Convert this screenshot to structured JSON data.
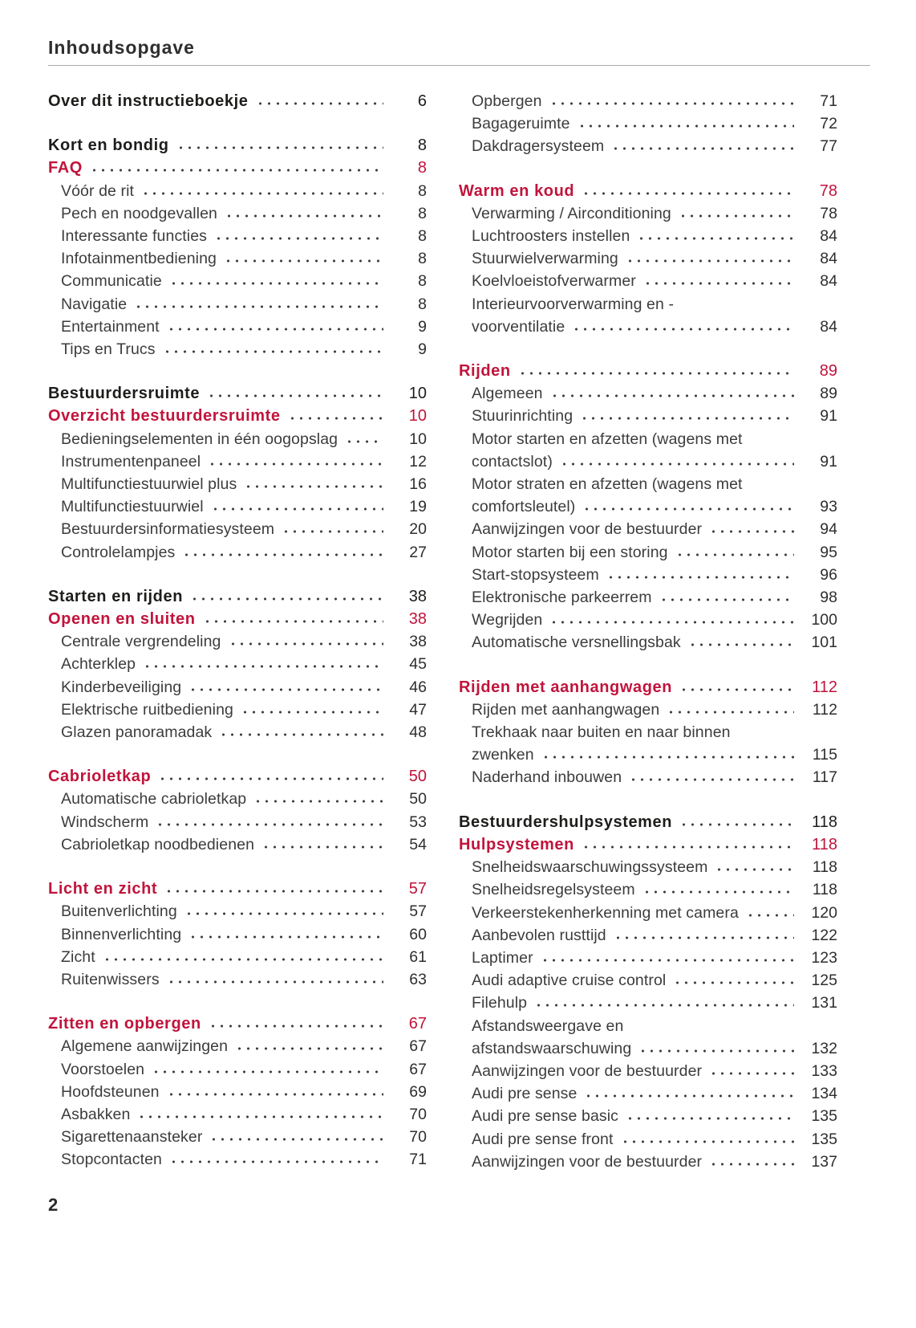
{
  "page": {
    "header_title": "Inhoudsopgave",
    "footer_page_number": "2",
    "accent_color": "#c1143c",
    "chapter_color": "#1d1d1b",
    "body_color": "#3c3c3c"
  },
  "toc": {
    "left_column": [
      {
        "type": "chapter",
        "label": "Over dit instructieboekje",
        "page": "6"
      },
      {
        "type": "chapter",
        "label": "Kort en bondig",
        "page": "8",
        "gap_before": true
      },
      {
        "type": "section",
        "label": "FAQ",
        "page": "8"
      },
      {
        "type": "sub",
        "label": "Vóór de rit",
        "page": "8"
      },
      {
        "type": "sub",
        "label": "Pech en noodgevallen",
        "page": "8"
      },
      {
        "type": "sub",
        "label": "Interessante functies",
        "page": "8"
      },
      {
        "type": "sub",
        "label": "Infotainmentbediening",
        "page": "8"
      },
      {
        "type": "sub",
        "label": "Communicatie",
        "page": "8"
      },
      {
        "type": "sub",
        "label": "Navigatie",
        "page": "8"
      },
      {
        "type": "sub",
        "label": "Entertainment",
        "page": "9"
      },
      {
        "type": "sub",
        "label": "Tips en Trucs",
        "page": "9"
      },
      {
        "type": "chapter",
        "label": "Bestuurdersruimte",
        "page": "10",
        "gap_before": true
      },
      {
        "type": "section",
        "label": "Overzicht bestuurdersruimte",
        "page": "10"
      },
      {
        "type": "sub",
        "label": "Bedieningselementen in één oogopslag",
        "page": "10"
      },
      {
        "type": "sub",
        "label": "Instrumentenpaneel",
        "page": "12"
      },
      {
        "type": "sub",
        "label": "Multifunctiestuurwiel plus",
        "page": "16"
      },
      {
        "type": "sub",
        "label": "Multifunctiestuurwiel",
        "page": "19"
      },
      {
        "type": "sub",
        "label": "Bestuurdersinformatiesysteem",
        "page": "20"
      },
      {
        "type": "sub",
        "label": "Controlelampjes",
        "page": "27"
      },
      {
        "type": "chapter",
        "label": "Starten en rijden",
        "page": "38",
        "gap_before": true
      },
      {
        "type": "section",
        "label": "Openen en sluiten",
        "page": "38"
      },
      {
        "type": "sub",
        "label": "Centrale vergrendeling",
        "page": "38"
      },
      {
        "type": "sub",
        "label": "Achterklep",
        "page": "45"
      },
      {
        "type": "sub",
        "label": "Kinderbeveiliging",
        "page": "46"
      },
      {
        "type": "sub",
        "label": "Elektrische ruitbediening",
        "page": "47"
      },
      {
        "type": "sub",
        "label": "Glazen panoramadak",
        "page": "48"
      },
      {
        "type": "section",
        "label": "Cabrioletkap",
        "page": "50",
        "gap_before": true
      },
      {
        "type": "sub",
        "label": "Automatische cabrioletkap",
        "page": "50"
      },
      {
        "type": "sub",
        "label": "Windscherm",
        "page": "53"
      },
      {
        "type": "sub",
        "label": "Cabrioletkap noodbedienen",
        "page": "54"
      },
      {
        "type": "section",
        "label": "Licht en zicht",
        "page": "57",
        "gap_before": true
      },
      {
        "type": "sub",
        "label": "Buitenverlichting",
        "page": "57"
      },
      {
        "type": "sub",
        "label": "Binnenverlichting",
        "page": "60"
      },
      {
        "type": "sub",
        "label": "Zicht",
        "page": "61"
      },
      {
        "type": "sub",
        "label": "Ruitenwissers",
        "page": "63"
      },
      {
        "type": "section",
        "label": "Zitten en opbergen",
        "page": "67",
        "gap_before": true
      },
      {
        "type": "sub",
        "label": "Algemene aanwijzingen",
        "page": "67"
      },
      {
        "type": "sub",
        "label": "Voorstoelen",
        "page": "67"
      },
      {
        "type": "sub",
        "label": "Hoofdsteunen",
        "page": "69"
      },
      {
        "type": "sub",
        "label": "Asbakken",
        "page": "70"
      },
      {
        "type": "sub",
        "label": "Sigarettenaansteker",
        "page": "70"
      },
      {
        "type": "sub",
        "label": "Stopcontacten",
        "page": "71"
      }
    ],
    "right_column": [
      {
        "type": "sub",
        "label": "Opbergen",
        "page": "71"
      },
      {
        "type": "sub",
        "label": "Bagageruimte",
        "page": "72"
      },
      {
        "type": "sub",
        "label": "Dakdragersysteem",
        "page": "77"
      },
      {
        "type": "section",
        "label": "Warm en koud",
        "page": "78",
        "gap_before": true
      },
      {
        "type": "sub",
        "label": "Verwarming / Airconditioning",
        "page": "78"
      },
      {
        "type": "sub",
        "label": "Luchtroosters instellen",
        "page": "84"
      },
      {
        "type": "sub",
        "label": "Stuurwielverwarming",
        "page": "84"
      },
      {
        "type": "sub",
        "label": "Koelvloeistofverwarmer",
        "page": "84"
      },
      {
        "type": "sub",
        "label": "Interieurvoorverwarming en -",
        "label2": "voorventilatie",
        "page": "84"
      },
      {
        "type": "section",
        "label": "Rijden",
        "page": "89",
        "gap_before": true
      },
      {
        "type": "sub",
        "label": "Algemeen",
        "page": "89"
      },
      {
        "type": "sub",
        "label": "Stuurinrichting",
        "page": "91"
      },
      {
        "type": "sub",
        "label": "Motor starten en afzetten (wagens met",
        "label2": "contactslot)",
        "page": "91"
      },
      {
        "type": "sub",
        "label": "Motor straten en afzetten (wagens met",
        "label2": "comfortsleutel)",
        "page": "93"
      },
      {
        "type": "sub",
        "label": "Aanwijzingen voor de bestuurder",
        "page": "94"
      },
      {
        "type": "sub",
        "label": "Motor starten bij een storing",
        "page": "95"
      },
      {
        "type": "sub",
        "label": "Start-stopsysteem",
        "page": "96"
      },
      {
        "type": "sub",
        "label": "Elektronische parkeerrem",
        "page": "98"
      },
      {
        "type": "sub",
        "label": "Wegrijden",
        "page": "100"
      },
      {
        "type": "sub",
        "label": "Automatische versnellingsbak",
        "page": "101"
      },
      {
        "type": "section",
        "label": "Rijden met aanhangwagen",
        "page": "112",
        "gap_before": true
      },
      {
        "type": "sub",
        "label": "Rijden met aanhangwagen",
        "page": "112"
      },
      {
        "type": "sub",
        "label": "Trekhaak naar buiten en naar binnen",
        "label2": "zwenken",
        "page": "115"
      },
      {
        "type": "sub",
        "label": "Naderhand inbouwen",
        "page": "117"
      },
      {
        "type": "chapter",
        "label": "Bestuurdershulpsystemen",
        "page": "118",
        "gap_before": true
      },
      {
        "type": "section",
        "label": "Hulpsystemen",
        "page": "118"
      },
      {
        "type": "sub",
        "label": "Snelheidswaarschuwingssysteem",
        "page": "118"
      },
      {
        "type": "sub",
        "label": "Snelheidsregelsysteem",
        "page": "118"
      },
      {
        "type": "sub",
        "label": "Verkeerstekenherkenning met camera",
        "page": "120"
      },
      {
        "type": "sub",
        "label": "Aanbevolen rusttijd",
        "page": "122"
      },
      {
        "type": "sub",
        "label": "Laptimer",
        "page": "123"
      },
      {
        "type": "sub",
        "label": "Audi adaptive cruise control",
        "page": "125"
      },
      {
        "type": "sub",
        "label": "Filehulp",
        "page": "131"
      },
      {
        "type": "sub",
        "label": "Afstandsweergave en",
        "label2": "afstandswaarschuwing",
        "page": "132"
      },
      {
        "type": "sub",
        "label": "Aanwijzingen voor de bestuurder",
        "page": "133"
      },
      {
        "type": "sub",
        "label": "Audi pre sense",
        "page": "134"
      },
      {
        "type": "sub",
        "label": "Audi pre sense basic",
        "page": "135"
      },
      {
        "type": "sub",
        "label": "Audi pre sense front",
        "page": "135"
      },
      {
        "type": "sub",
        "label": "Aanwijzingen voor de bestuurder",
        "page": "137"
      }
    ]
  }
}
